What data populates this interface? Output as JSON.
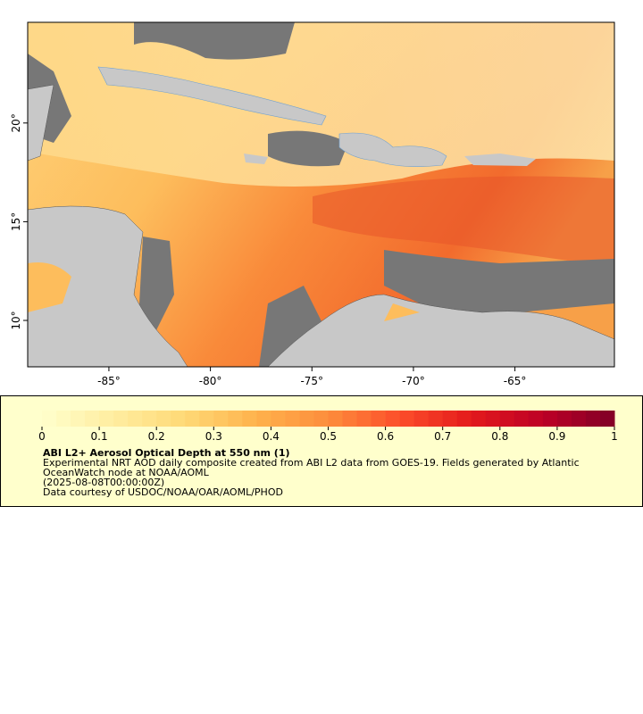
{
  "map": {
    "xlim": [
      -89.0,
      -60.1
    ],
    "ylim": [
      7.65,
      25.1
    ],
    "xticks": [
      {
        "value": -85,
        "label": "-85°"
      },
      {
        "value": -80,
        "label": "-80°"
      },
      {
        "value": -75,
        "label": "-75°"
      },
      {
        "value": -70,
        "label": "-70°"
      },
      {
        "value": -65,
        "label": "-65°"
      }
    ],
    "yticks": [
      {
        "value": 10,
        "label": "10°"
      },
      {
        "value": 15,
        "label": "15°"
      },
      {
        "value": 20,
        "label": "20°"
      }
    ]
  },
  "colorbar": {
    "lim": [
      0,
      1
    ],
    "ticks": [
      0,
      0.1,
      0.2,
      0.3,
      0.4,
      0.5,
      0.6,
      0.7,
      0.8,
      0.9,
      1
    ]
  },
  "legend": {
    "title": "ABI L2+ Aerosol Optical Depth at 550 nm (1)",
    "lines": [
      "Experimental NRT AOD daily composite created from ABI L2 data from GOES-19. Fields generated by Atlantic",
      "OceanWatch node at NOAA/AOML",
      "(2025-08-08T00:00:00Z)",
      "Data courtesy of USDOC/NOAA/OAR/AOML/PHOD"
    ]
  }
}
